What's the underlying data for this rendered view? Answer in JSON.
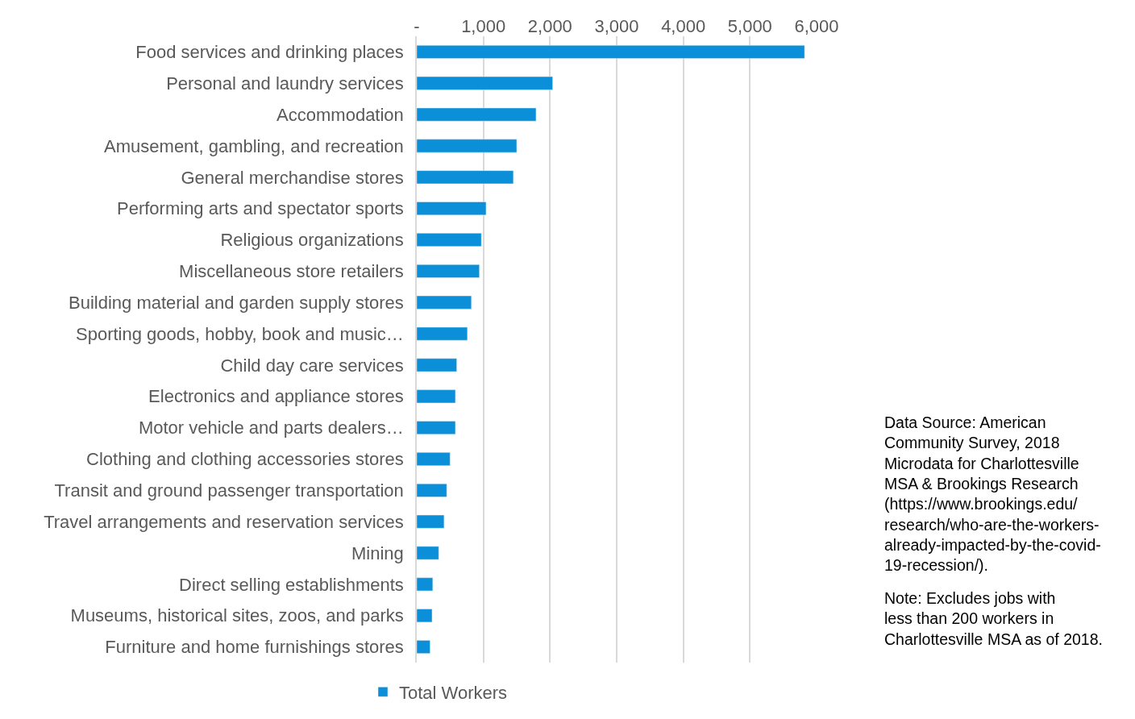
{
  "chart_data": {
    "type": "bar",
    "orientation": "horizontal",
    "categories": [
      "Food services and drinking places",
      "Personal and laundry services",
      "Accommodation",
      "Amusement, gambling, and recreation",
      "General merchandise stores",
      "Performing arts and spectator sports",
      "Religious organizations",
      "Miscellaneous store retailers",
      "Building material and garden supply stores",
      "Sporting goods, hobby, book and music…",
      "Child day care services",
      "Electronics and appliance stores",
      "Motor vehicle and parts dealers…",
      "Clothing and clothing accessories stores",
      "Transit and ground passenger transportation",
      "Travel arrangements and reservation services",
      "Mining",
      "Direct selling establishments",
      "Museums, historical sites, zoos, and parks",
      "Furniture and home furnishings stores"
    ],
    "series": [
      {
        "name": "Total Workers",
        "color": "#0a8fd8",
        "values": [
          5820,
          2040,
          1790,
          1500,
          1450,
          1040,
          970,
          940,
          820,
          760,
          600,
          580,
          580,
          500,
          450,
          410,
          330,
          240,
          230,
          200
        ]
      }
    ],
    "xlim": [
      0,
      6000
    ],
    "xticks": [
      {
        "value": 0,
        "label": "-"
      },
      {
        "value": 1000,
        "label": "1,000"
      },
      {
        "value": 2000,
        "label": "2,000"
      },
      {
        "value": 3000,
        "label": "3,000"
      },
      {
        "value": 4000,
        "label": "4,000"
      },
      {
        "value": 5000,
        "label": "5,000"
      },
      {
        "value": 6000,
        "label": "6,000"
      }
    ],
    "grid": "x",
    "legend": "bottom",
    "annotations": [
      "Data Source: American\nCommunity Survey, 2018\nMicrodata for Charlottesville\nMSA & Brookings Research\n(https://www.brookings.edu/\nresearch/who-are-the-workers-\nalready-impacted-by-the-covid-\n19-recession/).",
      "Note: Excludes jobs with\nless than 200 workers in\nCharlottesville MSA as of 2018."
    ]
  }
}
